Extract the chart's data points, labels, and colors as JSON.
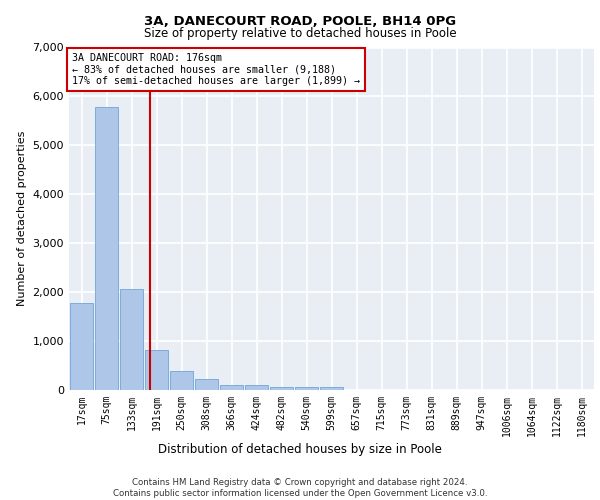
{
  "title1": "3A, DANECOURT ROAD, POOLE, BH14 0PG",
  "title2": "Size of property relative to detached houses in Poole",
  "xlabel": "Distribution of detached houses by size in Poole",
  "ylabel": "Number of detached properties",
  "bar_labels": [
    "17sqm",
    "75sqm",
    "133sqm",
    "191sqm",
    "250sqm",
    "308sqm",
    "366sqm",
    "424sqm",
    "482sqm",
    "540sqm",
    "599sqm",
    "657sqm",
    "715sqm",
    "773sqm",
    "831sqm",
    "889sqm",
    "947sqm",
    "1006sqm",
    "1064sqm",
    "1122sqm",
    "1180sqm"
  ],
  "bar_values": [
    1780,
    5780,
    2060,
    820,
    390,
    230,
    105,
    105,
    70,
    60,
    70,
    0,
    0,
    0,
    0,
    0,
    0,
    0,
    0,
    0,
    0
  ],
  "bar_color": "#aec6e8",
  "bar_edge_color": "#5b9bd5",
  "annotation_text_line1": "3A DANECOURT ROAD: 176sqm",
  "annotation_text_line2": "← 83% of detached houses are smaller (9,188)",
  "annotation_text_line3": "17% of semi-detached houses are larger (1,899) →",
  "red_line_color": "#cc0000",
  "annotation_box_color": "#ffffff",
  "annotation_box_edge_color": "#cc0000",
  "ylim": [
    0,
    7000
  ],
  "yticks": [
    0,
    1000,
    2000,
    3000,
    4000,
    5000,
    6000,
    7000
  ],
  "bg_color": "#e8eef4",
  "grid_color": "#ffffff",
  "footer1": "Contains HM Land Registry data © Crown copyright and database right 2024.",
  "footer2": "Contains public sector information licensed under the Open Government Licence v3.0."
}
